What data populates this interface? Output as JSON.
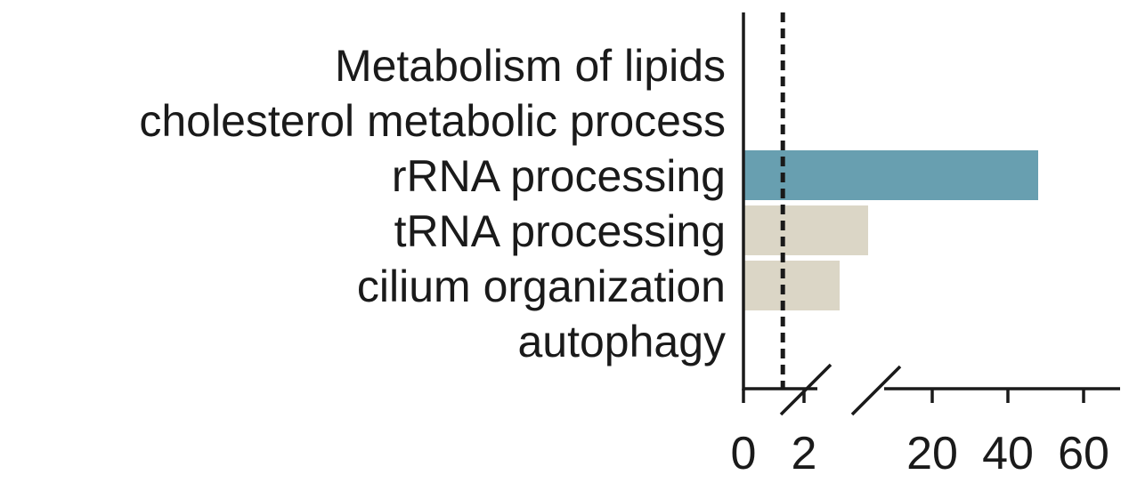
{
  "chart_data": {
    "type": "bar",
    "orientation": "horizontal",
    "categories": [
      "Metabolism of lipids",
      "cholesterol metabolic process",
      "rRNA processing",
      "tRNA processing",
      "cilium organization",
      "autophagy"
    ],
    "values": [
      0,
      0,
      48,
      11,
      7,
      0
    ],
    "bar_colors": [
      "#689fb0",
      "#689fb0",
      "#689fb0",
      "#dbd6c6",
      "#dbd6c6",
      "#2b4a85"
    ],
    "threshold": 1.3,
    "threshold_style": "dashed",
    "x_axis": {
      "broken": true,
      "segments": [
        [
          0,
          2
        ],
        [
          20,
          60
        ]
      ],
      "ticks": [
        0,
        2,
        20,
        40,
        60
      ],
      "tick_labels": [
        "0",
        "2",
        "20",
        "40",
        "60"
      ]
    },
    "xlabel": "",
    "ylabel": "",
    "title": "",
    "grid": false,
    "legend": "none"
  }
}
